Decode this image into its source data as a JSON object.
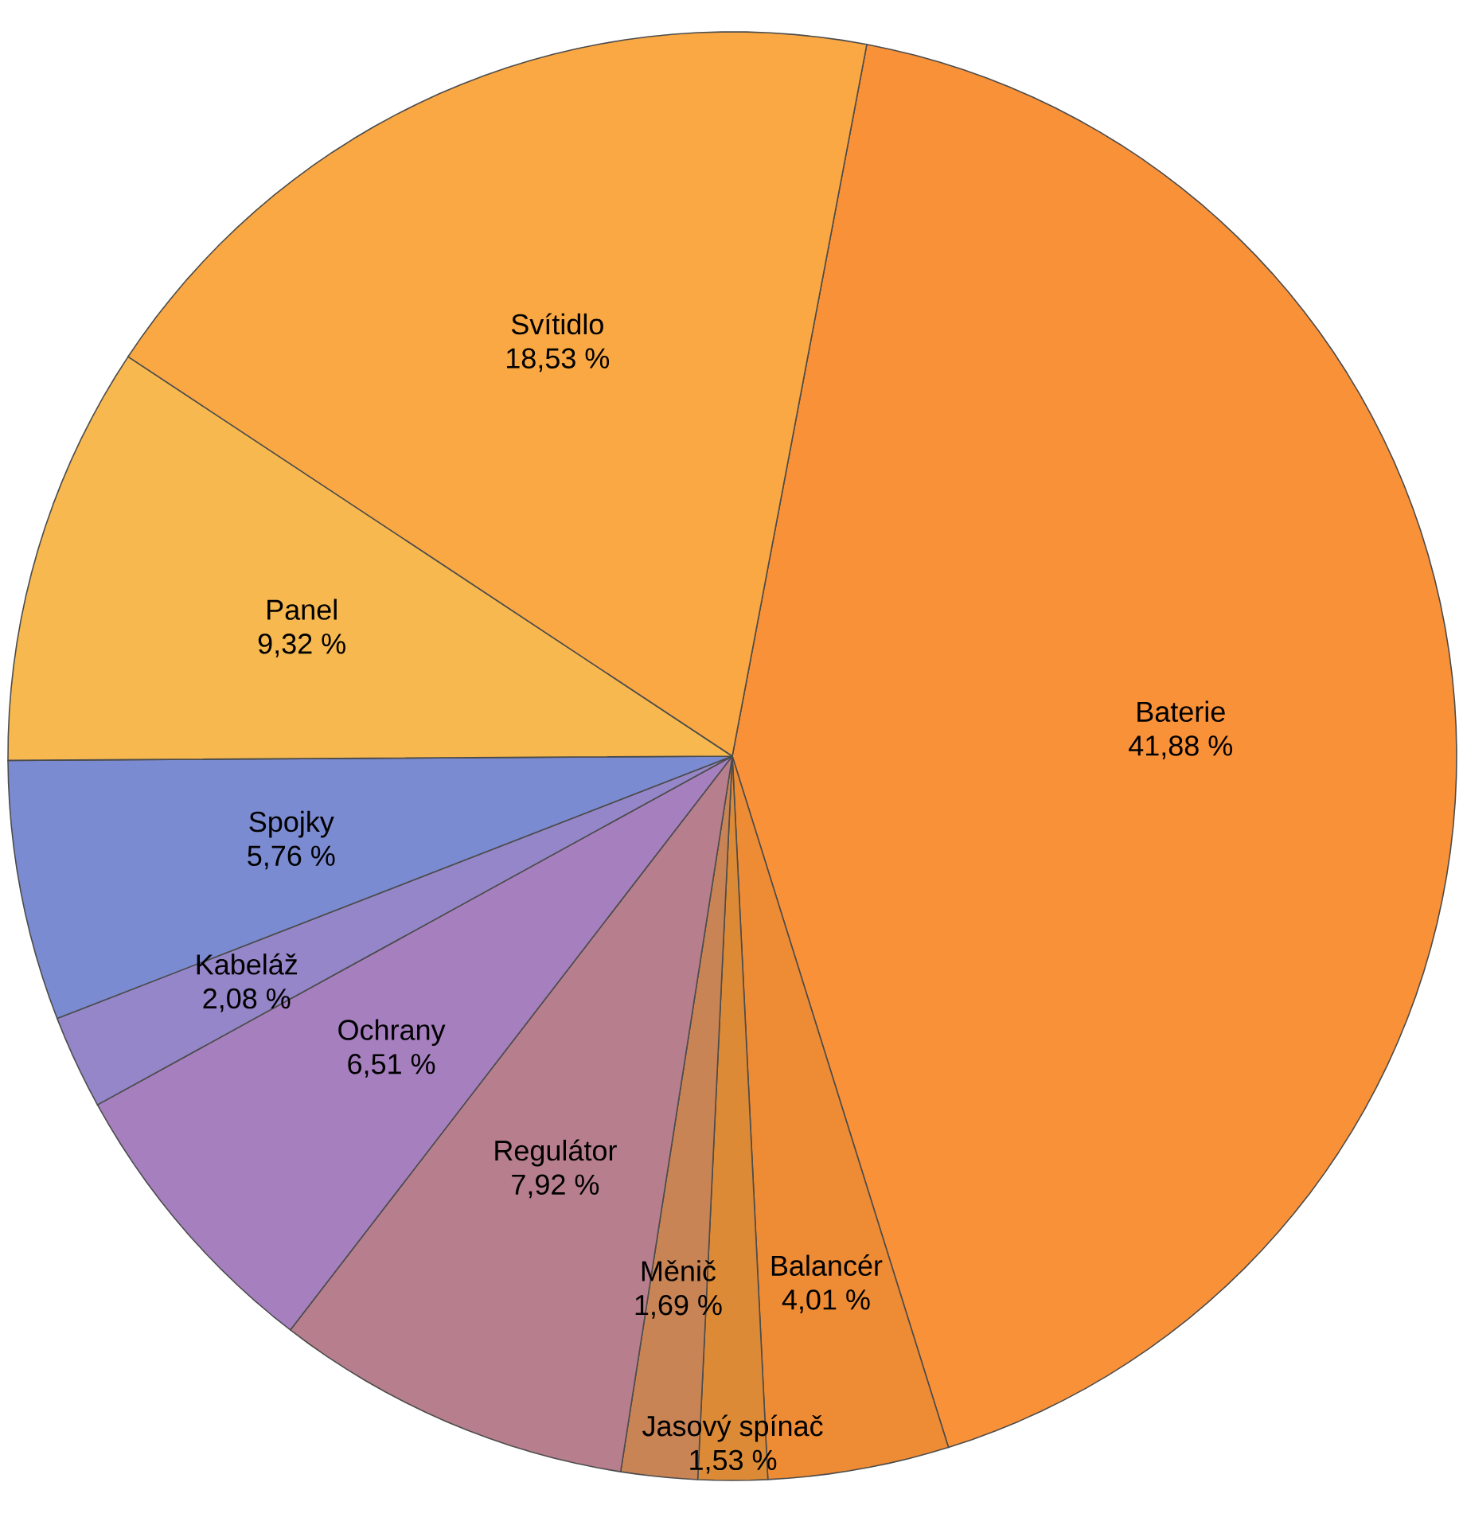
{
  "chart_data": {
    "type": "pie",
    "categories": [
      "Baterie",
      "Balancér",
      "Jasový spínač",
      "Měnič",
      "Regulátor",
      "Ochrany",
      "Kabeláž",
      "Spojky",
      "Panel",
      "Svítidlo"
    ],
    "values": [
      41.88,
      4.01,
      1.53,
      1.69,
      7.92,
      6.51,
      2.08,
      5.76,
      9.32,
      18.53
    ],
    "value_labels": [
      "41,88 %",
      "4,01 %",
      "1,53 %",
      "1,69 %",
      "7,92 %",
      "6,51 %",
      "2,08 %",
      "5,76 %",
      "9,32 %",
      "18,53 %"
    ],
    "colors": [
      "#f99139",
      "#ee8b35",
      "#dc8a36",
      "#c98455",
      "#b77f8d",
      "#a67fbf",
      "#9486c8",
      "#7b8bd2",
      "#f6b84f",
      "#f9a843"
    ]
  }
}
